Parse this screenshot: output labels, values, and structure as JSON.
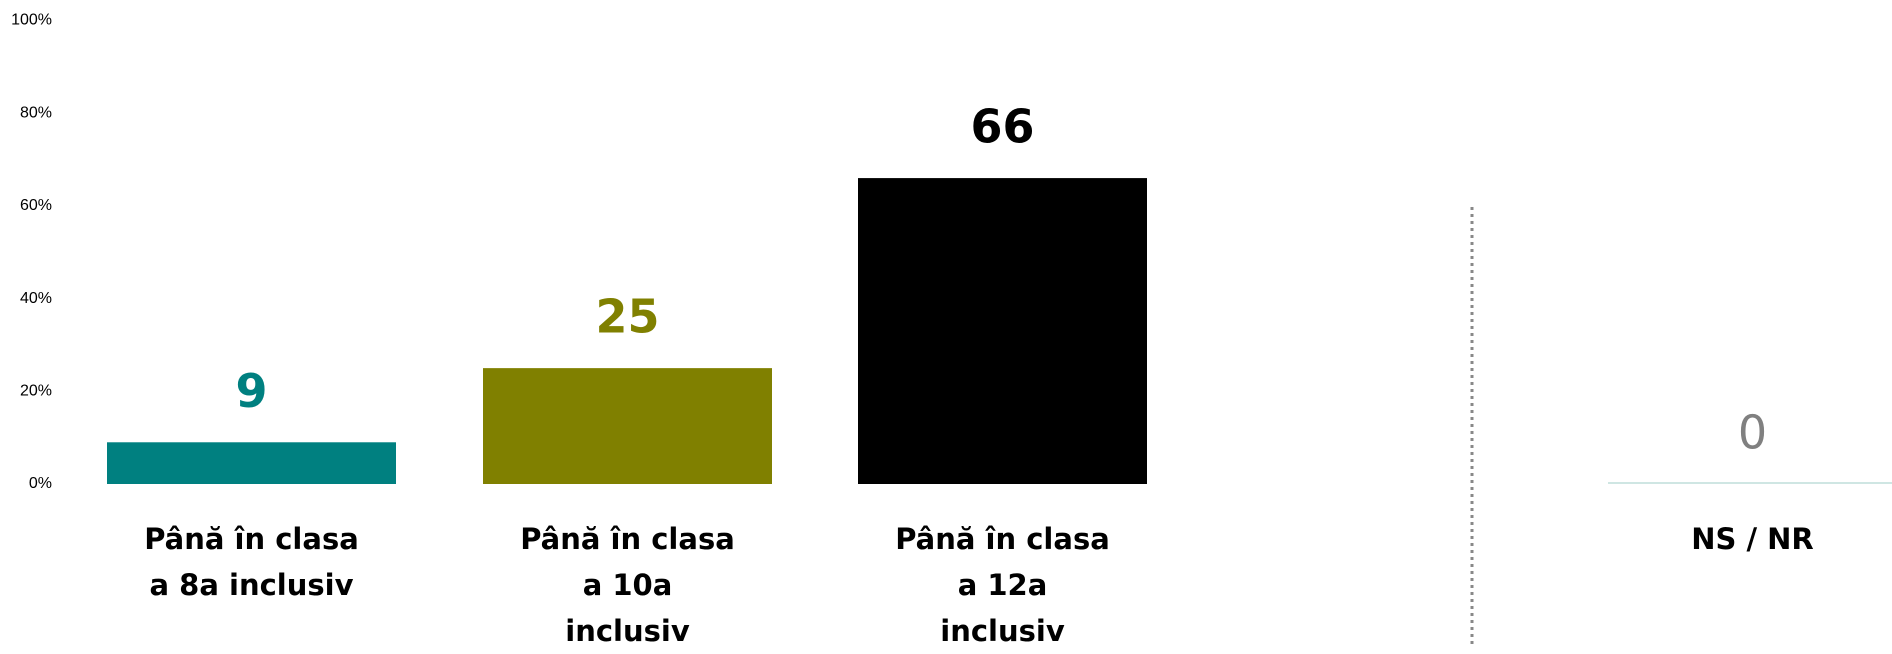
{
  "chart_data": {
    "type": "bar",
    "categories": [
      "Până în clasa a 8a inclusiv",
      "Până în clasa a 10a inclusiv",
      "Până în clasa a 12a inclusiv",
      "NS / NR"
    ],
    "values": [
      9,
      25,
      66,
      0
    ],
    "colors": [
      "#008080",
      "#808000",
      "#000000",
      "#cfe6e3"
    ],
    "label_colors": [
      "#008080",
      "#808000",
      "#000000",
      "#808080"
    ],
    "ylim": [
      0,
      100
    ],
    "yticks": [
      {
        "value": 0,
        "label": "0%"
      },
      {
        "value": 20,
        "label": "20%"
      },
      {
        "value": 40,
        "label": "40%"
      },
      {
        "value": 60,
        "label": "60%"
      },
      {
        "value": 80,
        "label": "80%"
      },
      {
        "value": 100,
        "label": "100%"
      }
    ],
    "grid": false
  }
}
